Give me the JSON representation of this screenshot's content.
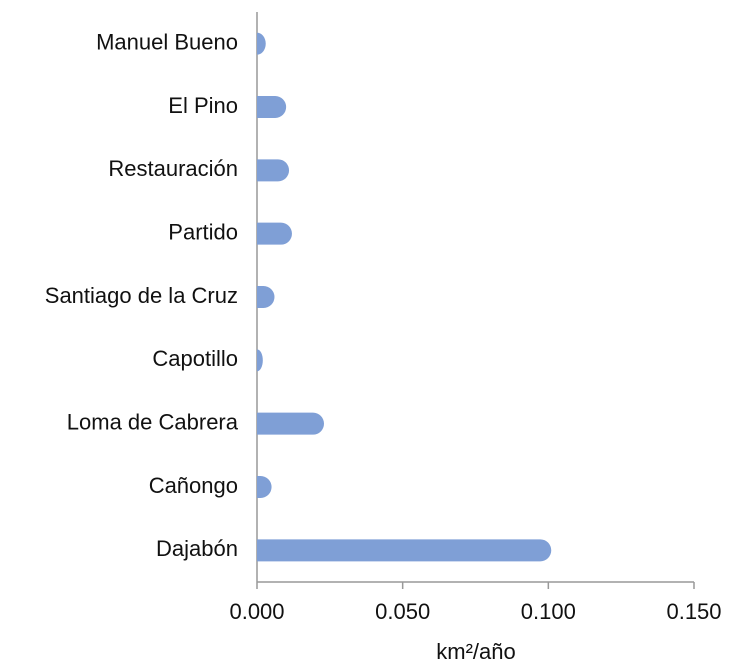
{
  "chart_data": {
    "type": "bar",
    "orientation": "horizontal",
    "x_label": "km²/año",
    "categories": [
      "Manuel Bueno",
      "El Pino",
      "Restauración",
      "Partido",
      "Santiago de la Cruz",
      "Capotillo",
      "Loma de Cabrera",
      "Cañongo",
      "Dajabón"
    ],
    "values": [
      0.003,
      0.01,
      0.011,
      0.012,
      0.006,
      0.002,
      0.023,
      0.005,
      0.101
    ],
    "color": "#7f9fd6",
    "xlim": [
      0,
      0.15
    ],
    "xticks": [
      {
        "value": 0,
        "label": "0.000"
      },
      {
        "value": 0.05,
        "label": "0.050"
      },
      {
        "value": 0.1,
        "label": "0.100"
      },
      {
        "value": 0.15,
        "label": "0.150"
      }
    ]
  }
}
